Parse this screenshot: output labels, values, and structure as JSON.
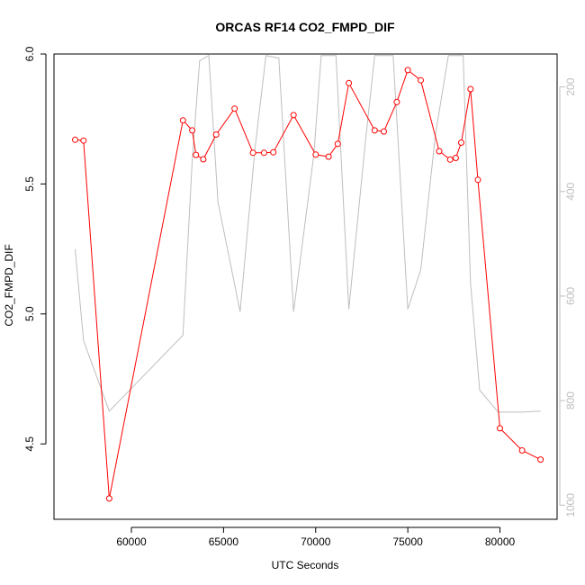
{
  "chart_data": {
    "type": "line",
    "title": "ORCAS RF14 CO2_FMPD_DIF",
    "xlabel": "UTC Seconds",
    "ylabel": "CO2_FMPD_DIF",
    "xlim": [
      55800,
      83100
    ],
    "ylim": [
      4.21,
      6.0
    ],
    "y2lim": [
      1027,
      137
    ],
    "x_ticks": [
      60000,
      65000,
      70000,
      75000,
      80000
    ],
    "x_tick_labels": [
      "60000",
      "65000",
      "70000",
      "75000",
      "80000"
    ],
    "y_ticks": [
      4.5,
      5.0,
      5.5,
      6.0
    ],
    "y_tick_labels": [
      "4.5",
      "5.0",
      "5.5",
      "6.0"
    ],
    "y2_ticks": [
      200,
      400,
      600,
      800,
      1000
    ],
    "y2_tick_labels": [
      "200",
      "400",
      "600",
      "800",
      "1000"
    ],
    "grid": false,
    "series": [
      {
        "axis": "left",
        "color": "#ff0000",
        "markers": "open-circle",
        "points": [
          [
            56950,
            5.67
          ],
          [
            57400,
            5.667
          ],
          [
            58800,
            4.29
          ],
          [
            62800,
            5.745
          ],
          [
            63300,
            5.706
          ],
          [
            63500,
            5.612
          ],
          [
            63900,
            5.595
          ],
          [
            64600,
            5.69
          ],
          [
            65600,
            5.79
          ],
          [
            66600,
            5.62
          ],
          [
            67200,
            5.62
          ],
          [
            67700,
            5.622
          ],
          [
            68800,
            5.765
          ],
          [
            70000,
            5.613
          ],
          [
            70700,
            5.605
          ],
          [
            71200,
            5.654
          ],
          [
            71800,
            5.888
          ],
          [
            73200,
            5.706
          ],
          [
            73700,
            5.702
          ],
          [
            74400,
            5.815
          ],
          [
            75000,
            5.938
          ],
          [
            75700,
            5.899
          ],
          [
            76700,
            5.626
          ],
          [
            77300,
            5.594
          ],
          [
            77600,
            5.6
          ],
          [
            77900,
            5.659
          ],
          [
            78400,
            5.865
          ],
          [
            78800,
            5.516
          ],
          [
            80000,
            4.56
          ],
          [
            81200,
            4.475
          ],
          [
            82200,
            4.44
          ]
        ]
      },
      {
        "axis": "right",
        "color": "#bebebe",
        "markers": "none",
        "points": [
          [
            56950,
            510
          ],
          [
            57400,
            685
          ],
          [
            58800,
            820
          ],
          [
            62800,
            675
          ],
          [
            63300,
            340
          ],
          [
            63700,
            150
          ],
          [
            64200,
            140
          ],
          [
            64700,
            420
          ],
          [
            65900,
            630
          ],
          [
            66700,
            320
          ],
          [
            67300,
            140
          ],
          [
            68000,
            145
          ],
          [
            68800,
            630
          ],
          [
            69900,
            330
          ],
          [
            70300,
            140
          ],
          [
            71100,
            140
          ],
          [
            71800,
            625
          ],
          [
            72700,
            305
          ],
          [
            73200,
            140
          ],
          [
            74200,
            140
          ],
          [
            75000,
            625
          ],
          [
            75700,
            550
          ],
          [
            76500,
            290
          ],
          [
            77200,
            140
          ],
          [
            78000,
            140
          ],
          [
            78400,
            575
          ],
          [
            78900,
            780
          ],
          [
            79900,
            822
          ],
          [
            81200,
            822
          ],
          [
            82200,
            820
          ]
        ]
      }
    ]
  }
}
